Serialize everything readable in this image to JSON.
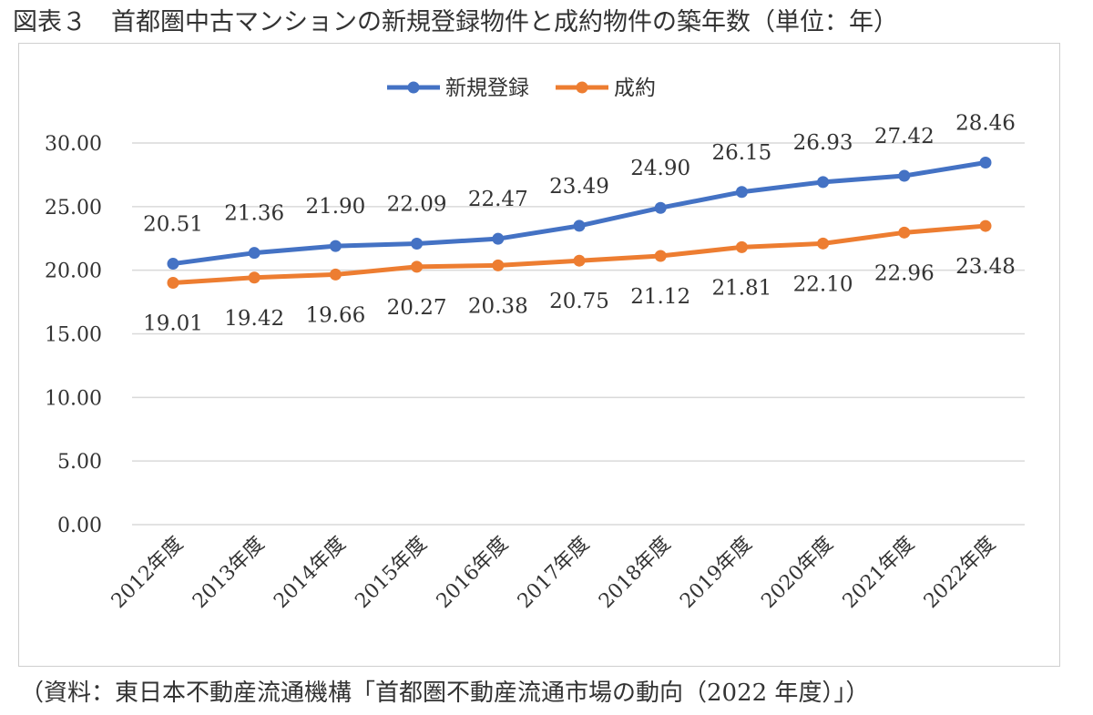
{
  "title": "図表３　首都圏中古マンションの新規登録物件と成約物件の築年数（単位：年）",
  "source": "（資料：東日本不動産流通機構「首都圏不動産流通市場の動向（2022 年度）」）",
  "chart_data": {
    "type": "line",
    "categories": [
      "2012年度",
      "2013年度",
      "2014年度",
      "2015年度",
      "2016年度",
      "2017年度",
      "2018年度",
      "2019年度",
      "2020年度",
      "2021年度",
      "2022年度"
    ],
    "series": [
      {
        "name": "新規登録",
        "color": "#4472C4",
        "values": [
          20.51,
          21.36,
          21.9,
          22.09,
          22.47,
          23.49,
          24.9,
          26.15,
          26.93,
          27.42,
          28.46
        ],
        "label_position": "above"
      },
      {
        "name": "成約",
        "color": "#ED7D31",
        "values": [
          19.01,
          19.42,
          19.66,
          20.27,
          20.38,
          20.75,
          21.12,
          21.81,
          22.1,
          22.96,
          23.48
        ],
        "label_position": "below"
      }
    ],
    "yticks": [
      "0.00",
      "5.00",
      "10.00",
      "15.00",
      "20.00",
      "25.00",
      "30.00"
    ],
    "ylim": [
      0,
      30
    ],
    "grid": true,
    "legend": "top-center",
    "xlabel": "",
    "ylabel": ""
  }
}
